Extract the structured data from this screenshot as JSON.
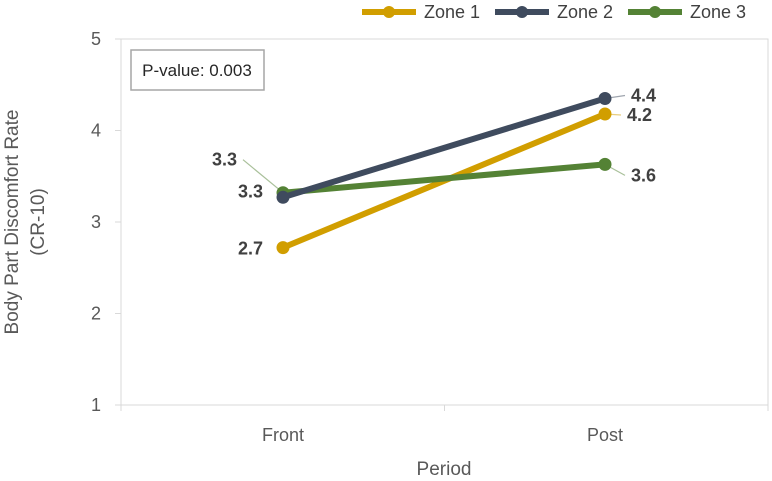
{
  "chart_data": {
    "type": "line",
    "categories": [
      "Front",
      "Post"
    ],
    "series": [
      {
        "name": "Zone 1",
        "color": "#d19e00",
        "values": [
          2.72,
          4.18
        ],
        "labels": [
          "2.7",
          "4.2"
        ]
      },
      {
        "name": "Zone 2",
        "color": "#3f4b5e",
        "values": [
          3.27,
          4.35
        ],
        "labels": [
          "3.3",
          "4.4"
        ]
      },
      {
        "name": "Zone 3",
        "color": "#548235",
        "values": [
          3.32,
          3.63
        ],
        "labels": [
          "3.3",
          "3.6"
        ]
      }
    ],
    "xlabel": "Period",
    "ylabel_lines": [
      "Body Part Discomfort Rate",
      "(CR-10)"
    ],
    "ylim": [
      1,
      5
    ],
    "yticks": [
      "1",
      "2",
      "3",
      "4",
      "5"
    ],
    "annotation": "P-value: 0.003",
    "legend_position": "top-right",
    "grid": false
  }
}
